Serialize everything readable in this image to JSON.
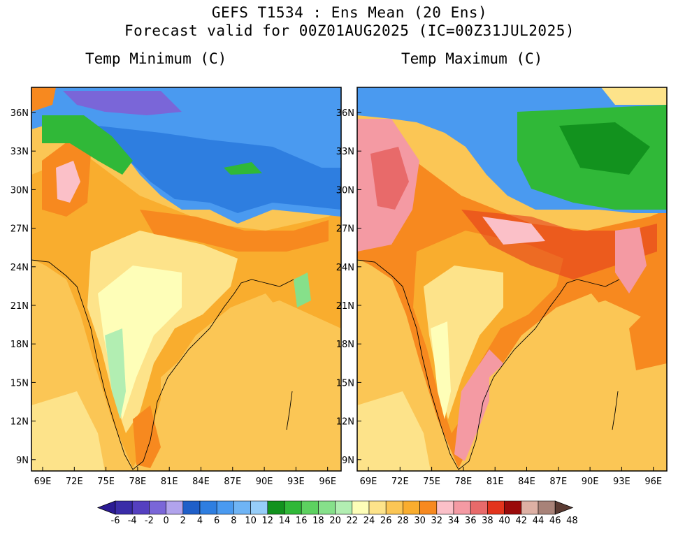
{
  "header": {
    "line1": "GEFS T1534 : Ens Mean (20 Ens)",
    "line2": "Forecast valid for 00Z01AUG2025 (IC=00Z31JUL2025)"
  },
  "panels": [
    {
      "title": "Temp Minimum (C)"
    },
    {
      "title": "Temp Maximum (C)"
    }
  ],
  "lat_ticks": [
    "36N",
    "33N",
    "30N",
    "27N",
    "24N",
    "21N",
    "18N",
    "15N",
    "12N",
    "9N"
  ],
  "lon_ticks": [
    "69E",
    "72E",
    "75E",
    "78E",
    "81E",
    "84E",
    "87E",
    "90E",
    "93E",
    "96E"
  ],
  "colorbar": {
    "labels": [
      "-6",
      "-4",
      "-2",
      "0",
      "2",
      "4",
      "6",
      "8",
      "10",
      "12",
      "14",
      "16",
      "18",
      "20",
      "22",
      "24",
      "26",
      "28",
      "30",
      "32",
      "34",
      "36",
      "38",
      "40",
      "42",
      "44",
      "46",
      "48"
    ],
    "colors": [
      "#2b1b94",
      "#3a2ca8",
      "#5540c0",
      "#7a66d8",
      "#b1a3ec",
      "#1f5fc8",
      "#2e7ee0",
      "#4a9af0",
      "#6fb4f5",
      "#96cdf8",
      "#12921e",
      "#30b838",
      "#5dd160",
      "#86e08a",
      "#b2eeb2",
      "#fefeb8",
      "#fde38a",
      "#fbc655",
      "#f9ad2e",
      "#f7891f",
      "#fbc0c8",
      "#f49aa3",
      "#e86a6a",
      "#e3341c",
      "#9a0a0a",
      "#ddb0a4",
      "#a88278",
      "#5a3a32"
    ]
  },
  "colors": {
    "ocean": "#fbc655",
    "background": "#ffffff"
  }
}
